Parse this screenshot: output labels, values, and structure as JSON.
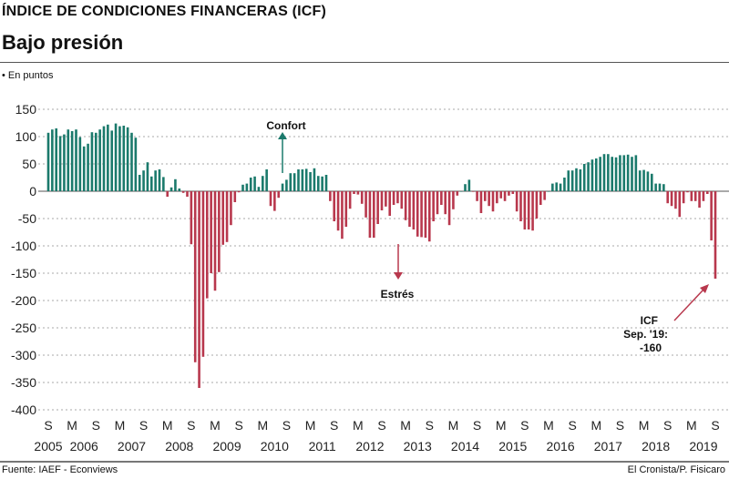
{
  "header": {
    "kicker": "ÍNDICE DE CONDICIONES FINANCERAS (ICF)",
    "title": "Bajo presión",
    "unit": "• En puntos"
  },
  "footer": {
    "source": "Fuente: IAEF - Econviews",
    "credit": "El Cronista/P. Fisicaro"
  },
  "colors": {
    "positive": "#1b7a6c",
    "negative": "#b8384d"
  },
  "chart_data": {
    "type": "bar",
    "title": "Bajo presión",
    "ylabel": "En puntos",
    "ylim": [
      -400,
      150
    ],
    "yticks": [
      150,
      100,
      50,
      0,
      -50,
      -100,
      -150,
      -200,
      -250,
      -300,
      -350,
      -400
    ],
    "x_start": "2005-09",
    "x_end": "2019-09",
    "frequency": "monthly",
    "month_tick_labels": {
      "march": "M",
      "september": "S"
    },
    "years": [
      "2005",
      "2006",
      "2007",
      "2008",
      "2009",
      "2010",
      "2011",
      "2012",
      "2013",
      "2014",
      "2015",
      "2016",
      "2017",
      "2018",
      "2019"
    ],
    "values": [
      107,
      113,
      115,
      101,
      104,
      113,
      110,
      113,
      99,
      82,
      87,
      108,
      107,
      113,
      119,
      122,
      111,
      124,
      119,
      120,
      117,
      107,
      98,
      30,
      38,
      53,
      27,
      38,
      40,
      26,
      -10,
      7,
      22,
      5,
      -3,
      -10,
      -97,
      -313,
      -360,
      -303,
      -196,
      -150,
      -182,
      -148,
      -98,
      -93,
      -62,
      -20,
      -2,
      12,
      14,
      25,
      27,
      8,
      28,
      40,
      -27,
      -36,
      -12,
      14,
      21,
      33,
      33,
      40,
      40,
      41,
      35,
      42,
      28,
      27,
      30,
      -18,
      -55,
      -72,
      -87,
      -65,
      -32,
      -5,
      -6,
      -23,
      -48,
      -85,
      -85,
      -60,
      -35,
      -28,
      -45,
      -25,
      -22,
      -32,
      -53,
      -65,
      -70,
      -83,
      -84,
      -85,
      -92,
      -55,
      -42,
      -25,
      -42,
      -62,
      -33,
      -8,
      0,
      13,
      21,
      -1,
      -18,
      -40,
      -18,
      -27,
      -37,
      -22,
      -13,
      -18,
      -8,
      -5,
      -37,
      -55,
      -70,
      -70,
      -72,
      -50,
      -25,
      -16,
      0,
      14,
      16,
      14,
      25,
      38,
      38,
      42,
      40,
      50,
      53,
      58,
      60,
      63,
      68,
      68,
      63,
      62,
      66,
      66,
      67,
      63,
      66,
      38,
      39,
      36,
      32,
      14,
      14,
      13,
      -22,
      -27,
      -32,
      -47,
      -22,
      -2,
      -18,
      -18,
      -30,
      -18,
      -5,
      -90,
      -160
    ],
    "annotations": {
      "up": "Confort",
      "down": "Estrés",
      "last_line1": "ICF",
      "last_line2": "Sep. '19:",
      "last_line3": "-160"
    }
  }
}
